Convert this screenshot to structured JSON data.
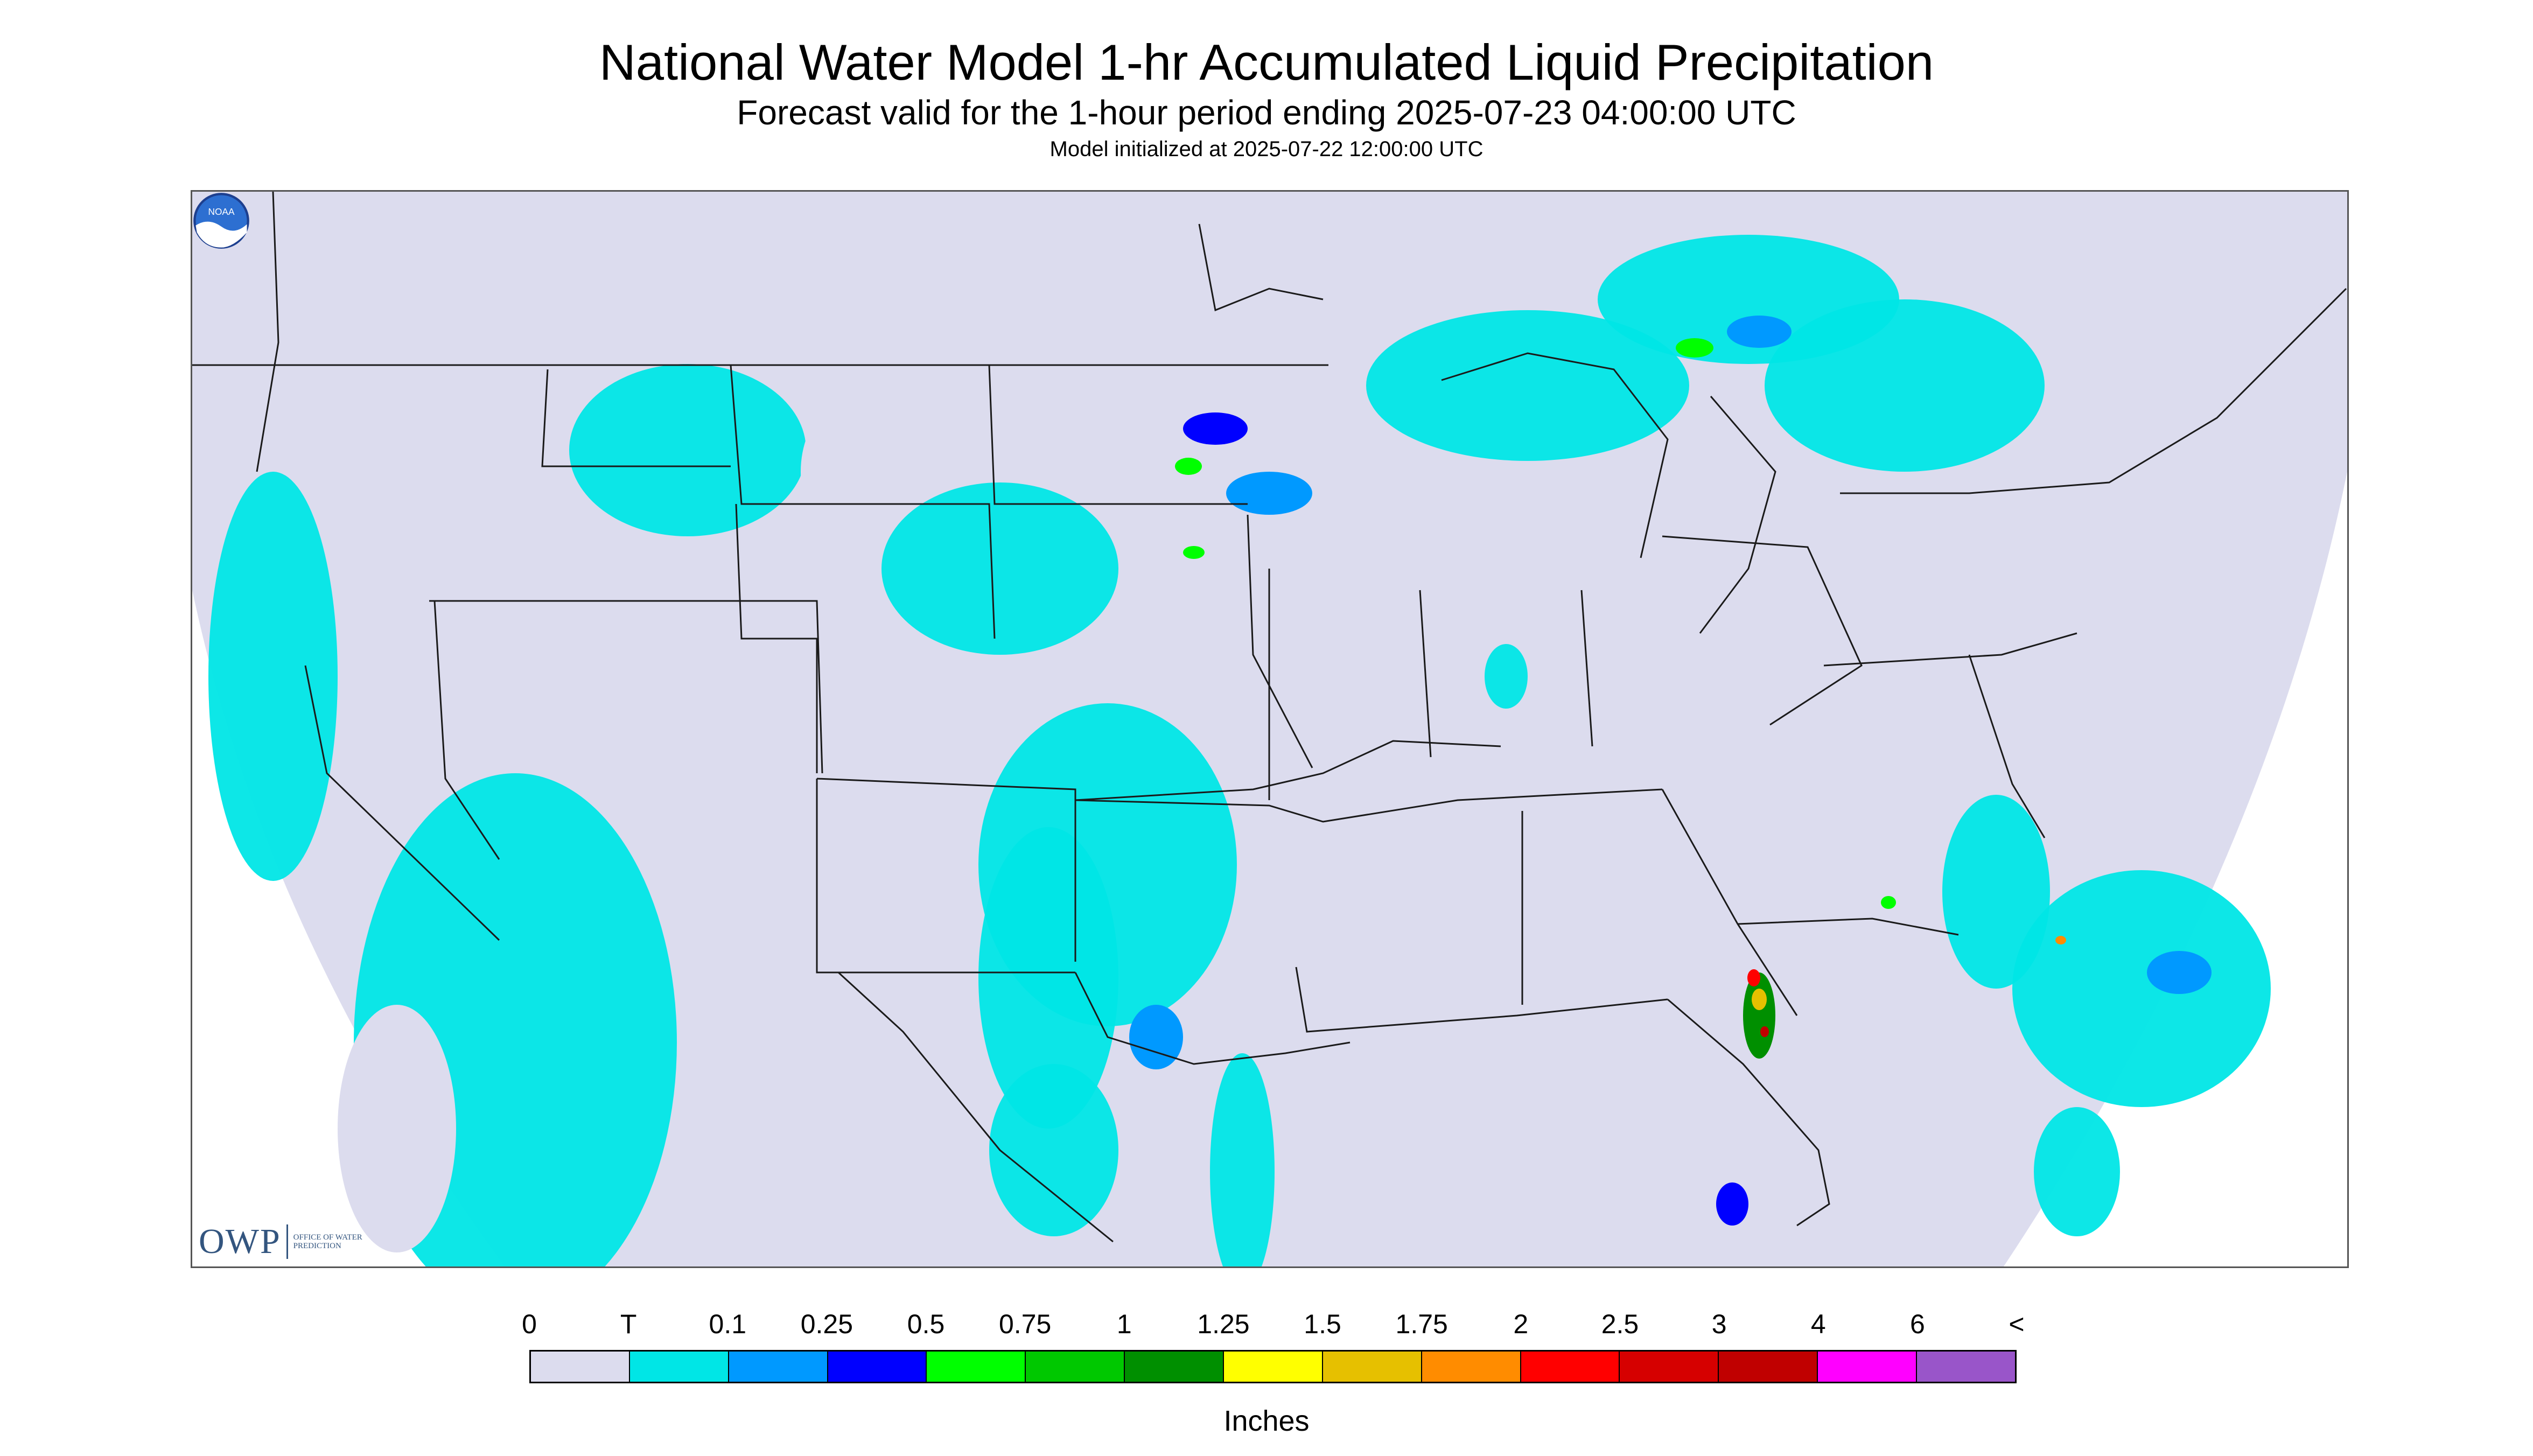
{
  "header": {
    "title": "National Water Model 1-hr Accumulated Liquid Precipitation",
    "subtitle": "Forecast valid for the 1-hour period ending 2025-07-23 04:00:00 UTC",
    "init": "Model initialized at 2025-07-22 12:00:00 UTC"
  },
  "map": {
    "background_color": "#dcdcee",
    "outside_color": "#ffffff",
    "boundary_color": "#1a1a1a",
    "region": "CONUS",
    "logos": {
      "owp_mark": "OWP",
      "owp_text": "OFFICE OF WATER PREDICTION",
      "noaa_icon": "noaa-logo-icon"
    }
  },
  "legend": {
    "labels": [
      "0",
      "T",
      "0.1",
      "0.25",
      "0.5",
      "0.75",
      "1",
      "1.25",
      "1.5",
      "1.75",
      "2",
      "2.5",
      "3",
      "4",
      "6",
      "<"
    ],
    "colors": [
      "#dcdcee",
      "#00e6e6",
      "#0099ff",
      "#0000ff",
      "#00ff00",
      "#00c800",
      "#008f00",
      "#ffff00",
      "#e6c000",
      "#ff8c00",
      "#ff0000",
      "#d60000",
      "#c00000",
      "#ff00ff",
      "#9955c9"
    ],
    "units": "Inches"
  }
}
